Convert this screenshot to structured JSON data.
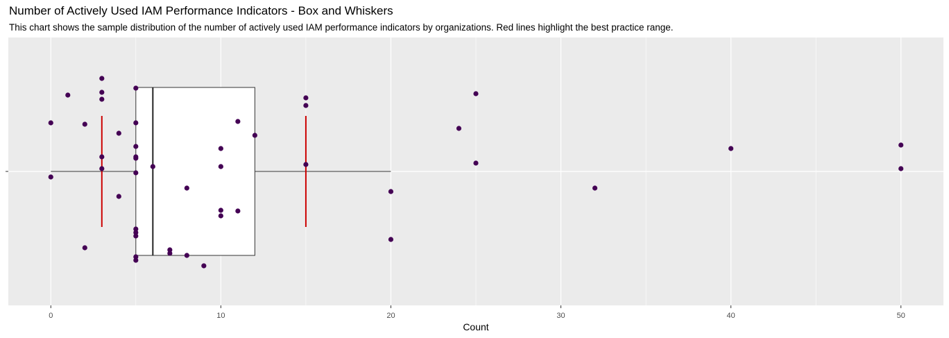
{
  "chart_data": {
    "type": "box",
    "title": "Number of Actively Used IAM Performance Indicators - Box and Whiskers",
    "subtitle": "This chart shows the sample distribution of the number of actively used IAM performance indicators by organizations. Red lines highlight the best practice range.",
    "xlabel": "Count",
    "ylabel": "",
    "xlim": [
      -2.5,
      52.5
    ],
    "x_ticks": [
      "0",
      "10",
      "20",
      "30",
      "40",
      "50"
    ],
    "grid": true,
    "box": {
      "whisker_low": 0,
      "q1": 5,
      "median": 6,
      "q3": 12,
      "whisker_high": 20
    },
    "best_practice_lines": [
      3,
      15
    ],
    "best_practice_color": "#cc0000",
    "point_color": "#440154",
    "panel_background": "#ebebeb",
    "points": [
      {
        "x": 0,
        "jitter": 0.7
      },
      {
        "x": 0,
        "jitter": -0.08
      },
      {
        "x": 1,
        "jitter": 1.1
      },
      {
        "x": 2,
        "jitter": 0.68
      },
      {
        "x": 2,
        "jitter": -1.1
      },
      {
        "x": 3,
        "jitter": 1.34
      },
      {
        "x": 3,
        "jitter": 1.14
      },
      {
        "x": 3,
        "jitter": 1.04
      },
      {
        "x": 3,
        "jitter": 0.21
      },
      {
        "x": 3,
        "jitter": 0.04
      },
      {
        "x": 4,
        "jitter": 0.55
      },
      {
        "x": 4,
        "jitter": -0.36
      },
      {
        "x": 5,
        "jitter": 1.2
      },
      {
        "x": 5,
        "jitter": 0.7
      },
      {
        "x": 5,
        "jitter": 0.36
      },
      {
        "x": 5,
        "jitter": 0.21
      },
      {
        "x": 5,
        "jitter": 0.19
      },
      {
        "x": 5,
        "jitter": -0.02
      },
      {
        "x": 5,
        "jitter": -0.83
      },
      {
        "x": 5,
        "jitter": -0.88
      },
      {
        "x": 5,
        "jitter": -0.93
      },
      {
        "x": 5,
        "jitter": -1.23
      },
      {
        "x": 5,
        "jitter": -1.28
      },
      {
        "x": 6,
        "jitter": 0.07
      },
      {
        "x": 7,
        "jitter": -1.13
      },
      {
        "x": 7,
        "jitter": -1.18
      },
      {
        "x": 8,
        "jitter": -0.24
      },
      {
        "x": 8,
        "jitter": -1.21
      },
      {
        "x": 9,
        "jitter": -1.36
      },
      {
        "x": 10,
        "jitter": 0.33
      },
      {
        "x": 10,
        "jitter": 0.07
      },
      {
        "x": 10,
        "jitter": -0.56
      },
      {
        "x": 10,
        "jitter": -0.64
      },
      {
        "x": 11,
        "jitter": 0.72
      },
      {
        "x": 11,
        "jitter": -0.57
      },
      {
        "x": 12,
        "jitter": 0.52
      },
      {
        "x": 15,
        "jitter": 1.06
      },
      {
        "x": 15,
        "jitter": 0.95
      },
      {
        "x": 15,
        "jitter": 0.1
      },
      {
        "x": 20,
        "jitter": -0.29
      },
      {
        "x": 20,
        "jitter": -0.98
      },
      {
        "x": 24,
        "jitter": 0.62
      },
      {
        "x": 25,
        "jitter": 1.12
      },
      {
        "x": 25,
        "jitter": 0.12
      },
      {
        "x": 32,
        "jitter": -0.24
      },
      {
        "x": 40,
        "jitter": 0.33
      },
      {
        "x": 50,
        "jitter": 0.38
      },
      {
        "x": 50,
        "jitter": 0.04
      }
    ]
  }
}
